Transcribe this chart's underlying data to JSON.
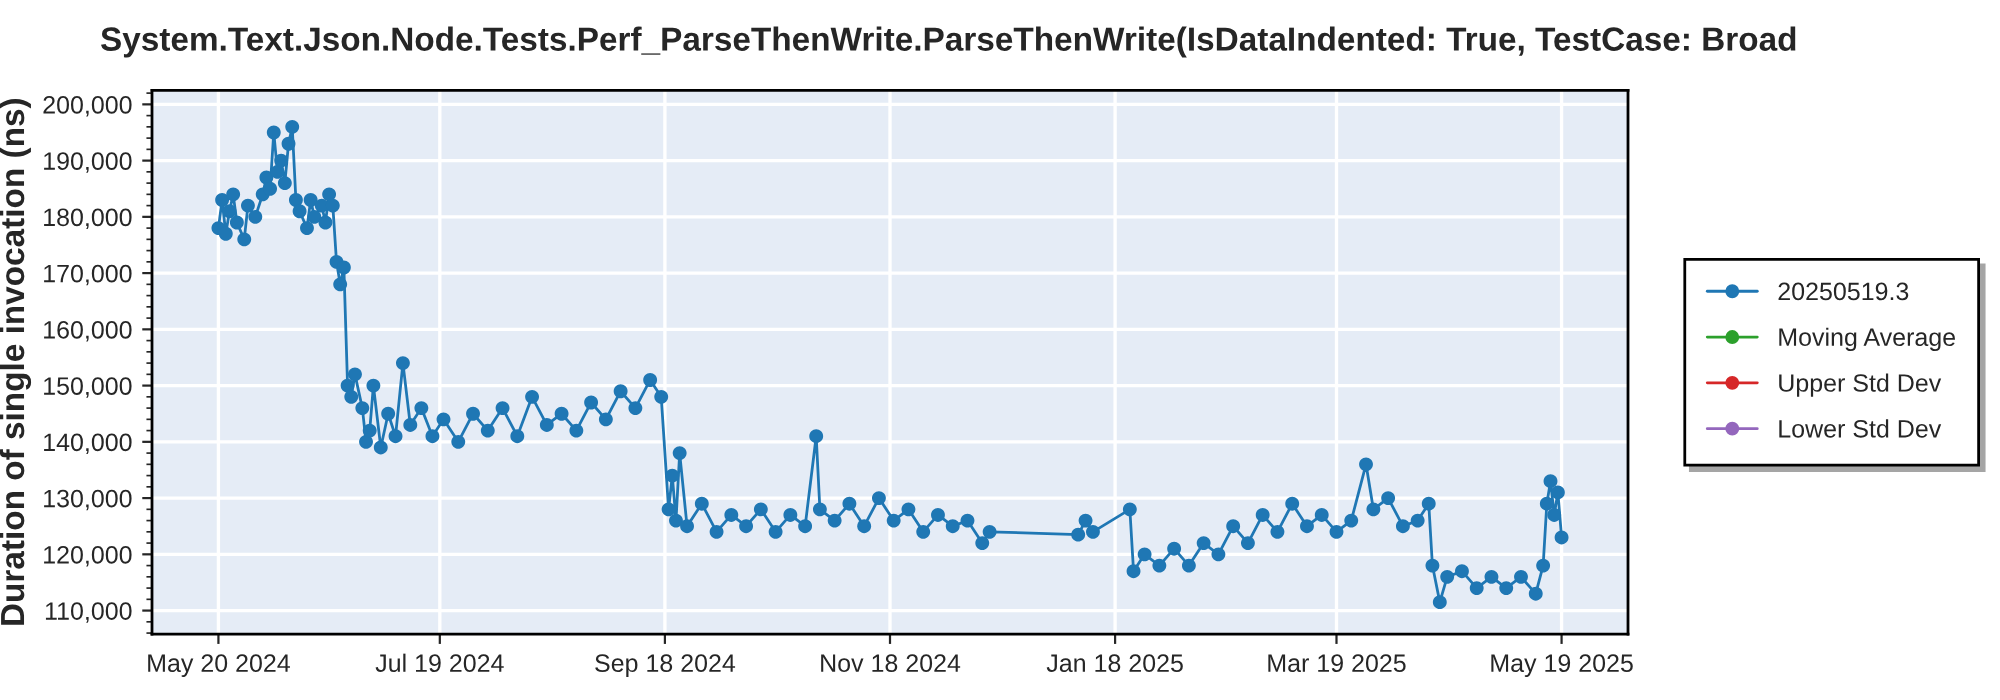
{
  "chart_data": {
    "type": "line",
    "title": "System.Text.Json.Node.Tests.Perf_ParseThenWrite.ParseThenWrite(IsDataIndented: True, TestCase: Broad",
    "ylabel": "Duration of single invocation (ns)",
    "xlim": [
      "2024-05-02",
      "2025-06-06"
    ],
    "xticks": [
      {
        "value": "2024-05-20",
        "label": "May 20 2024"
      },
      {
        "value": "2024-07-19",
        "label": "Jul 19 2024"
      },
      {
        "value": "2024-09-18",
        "label": "Sep 18 2024"
      },
      {
        "value": "2024-11-18",
        "label": "Nov 18 2024"
      },
      {
        "value": "2025-01-18",
        "label": "Jan 18 2025"
      },
      {
        "value": "2025-03-19",
        "label": "Mar 19 2025"
      },
      {
        "value": "2025-05-19",
        "label": "May 19 2025"
      }
    ],
    "ylim": [
      105800,
      202500
    ],
    "yticks": [
      {
        "value": 110000,
        "label": "110,000"
      },
      {
        "value": 120000,
        "label": "120,000"
      },
      {
        "value": 130000,
        "label": "130,000"
      },
      {
        "value": 140000,
        "label": "140,000"
      },
      {
        "value": 150000,
        "label": "150,000"
      },
      {
        "value": 160000,
        "label": "160,000"
      },
      {
        "value": 170000,
        "label": "170,000"
      },
      {
        "value": 180000,
        "label": "180,000"
      },
      {
        "value": 190000,
        "label": "190,000"
      },
      {
        "value": 200000,
        "label": "200,000"
      }
    ],
    "grid": true,
    "legend": "right",
    "marker": "circle",
    "line_style": "solid",
    "series": [
      {
        "name": "20250519.3",
        "color": "#1f77b4",
        "x": [
          "2024-05-20",
          "2024-05-21",
          "2024-05-22",
          "2024-05-23",
          "2024-05-24",
          "2024-05-25",
          "2024-05-27",
          "2024-05-28",
          "2024-05-30",
          "2024-06-01",
          "2024-06-02",
          "2024-06-03",
          "2024-06-04",
          "2024-06-05",
          "2024-06-06",
          "2024-06-07",
          "2024-06-08",
          "2024-06-09",
          "2024-06-10",
          "2024-06-11",
          "2024-06-13",
          "2024-06-14",
          "2024-06-15",
          "2024-06-17",
          "2024-06-18",
          "2024-06-19",
          "2024-06-20",
          "2024-06-21",
          "2024-06-22",
          "2024-06-23",
          "2024-06-24",
          "2024-06-25",
          "2024-06-26",
          "2024-06-28",
          "2024-06-29",
          "2024-06-30",
          "2024-07-01",
          "2024-07-03",
          "2024-07-05",
          "2024-07-07",
          "2024-07-09",
          "2024-07-11",
          "2024-07-14",
          "2024-07-17",
          "2024-07-20",
          "2024-07-24",
          "2024-07-28",
          "2024-08-01",
          "2024-08-05",
          "2024-08-09",
          "2024-08-13",
          "2024-08-17",
          "2024-08-21",
          "2024-08-25",
          "2024-08-29",
          "2024-09-02",
          "2024-09-06",
          "2024-09-10",
          "2024-09-14",
          "2024-09-17",
          "2024-09-19",
          "2024-09-20",
          "2024-09-21",
          "2024-09-22",
          "2024-09-24",
          "2024-09-28",
          "2024-10-02",
          "2024-10-06",
          "2024-10-10",
          "2024-10-14",
          "2024-10-18",
          "2024-10-22",
          "2024-10-26",
          "2024-10-29",
          "2024-10-30",
          "2024-11-03",
          "2024-11-07",
          "2024-11-11",
          "2024-11-15",
          "2024-11-19",
          "2024-11-23",
          "2024-11-27",
          "2024-12-01",
          "2024-12-05",
          "2024-12-09",
          "2024-12-13",
          "2024-12-15",
          "2025-01-08",
          "2025-01-10",
          "2025-01-12",
          "2025-01-22",
          "2025-01-23",
          "2025-01-26",
          "2025-01-30",
          "2025-02-03",
          "2025-02-07",
          "2025-02-11",
          "2025-02-15",
          "2025-02-19",
          "2025-02-23",
          "2025-02-27",
          "2025-03-03",
          "2025-03-07",
          "2025-03-11",
          "2025-03-15",
          "2025-03-19",
          "2025-03-23",
          "2025-03-27",
          "2025-03-29",
          "2025-04-02",
          "2025-04-06",
          "2025-04-10",
          "2025-04-13",
          "2025-04-14",
          "2025-04-16",
          "2025-04-18",
          "2025-04-22",
          "2025-04-26",
          "2025-04-30",
          "2025-05-04",
          "2025-05-08",
          "2025-05-12",
          "2025-05-14",
          "2025-05-15",
          "2025-05-16",
          "2025-05-17",
          "2025-05-18",
          "2025-05-19"
        ],
        "values": [
          178000,
          183000,
          177000,
          181000,
          184000,
          179000,
          176000,
          182000,
          180000,
          184000,
          187000,
          185000,
          195000,
          188000,
          190000,
          186000,
          193000,
          196000,
          183000,
          181000,
          178000,
          183000,
          180000,
          182000,
          179000,
          184000,
          182000,
          172000,
          168000,
          171000,
          150000,
          148000,
          152000,
          146000,
          140000,
          142000,
          150000,
          139000,
          145000,
          141000,
          154000,
          143000,
          146000,
          141000,
          144000,
          140000,
          145000,
          142000,
          146000,
          141000,
          148000,
          143000,
          145000,
          142000,
          147000,
          144000,
          149000,
          146000,
          151000,
          148000,
          128000,
          134000,
          126000,
          138000,
          125000,
          129000,
          124000,
          127000,
          125000,
          128000,
          124000,
          127000,
          125000,
          141000,
          128000,
          126000,
          129000,
          125000,
          130000,
          126000,
          128000,
          124000,
          127000,
          125000,
          126000,
          122000,
          124000,
          123500,
          126000,
          124000,
          128000,
          117000,
          120000,
          118000,
          121000,
          118000,
          122000,
          120000,
          125000,
          122000,
          127000,
          124000,
          129000,
          125000,
          127000,
          124000,
          126000,
          136000,
          128000,
          130000,
          125000,
          126000,
          129000,
          118000,
          111500,
          116000,
          117000,
          114000,
          116000,
          114000,
          116000,
          113000,
          118000,
          129000,
          133000,
          127000,
          131000,
          123000
        ]
      },
      {
        "name": "Moving Average",
        "color": "#2ca02c"
      },
      {
        "name": "Upper Std Dev",
        "color": "#d62728"
      },
      {
        "name": "Lower Std Dev",
        "color": "#9467bd"
      }
    ]
  }
}
